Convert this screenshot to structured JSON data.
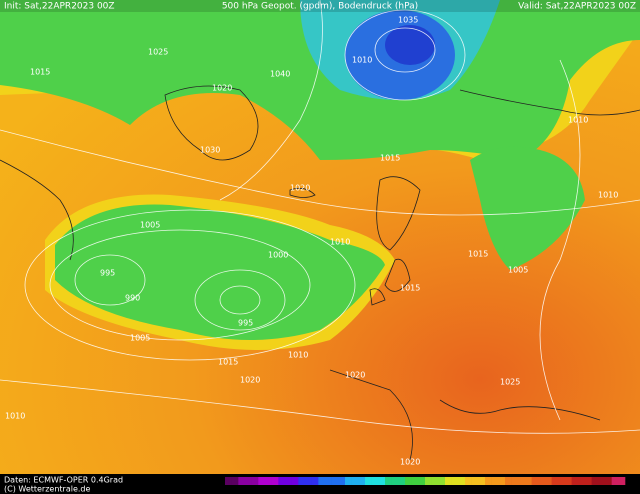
{
  "header": {
    "init": "Init: Sat,22APR2023 00Z",
    "title": "500 hPa Geopot. (gpdm), Bodendruck (hPa)",
    "valid": "Valid: Sat,22APR2023 00Z"
  },
  "footer": {
    "source": "Daten: ECMWF-OPER 0.4Grad",
    "copyright": "(C) Wetterzentrale.de"
  },
  "isobar_labels": [
    "1035",
    "1010",
    "1040",
    "1025",
    "1015",
    "1020",
    "1030",
    "1010",
    "1015",
    "1020",
    "995",
    "990",
    "995",
    "1000",
    "1005",
    "1010",
    "1015",
    "1020",
    "1005",
    "1010",
    "1015",
    "1020",
    "1025",
    "1010",
    "1015",
    "1020",
    "1005",
    "1010"
  ]
}
